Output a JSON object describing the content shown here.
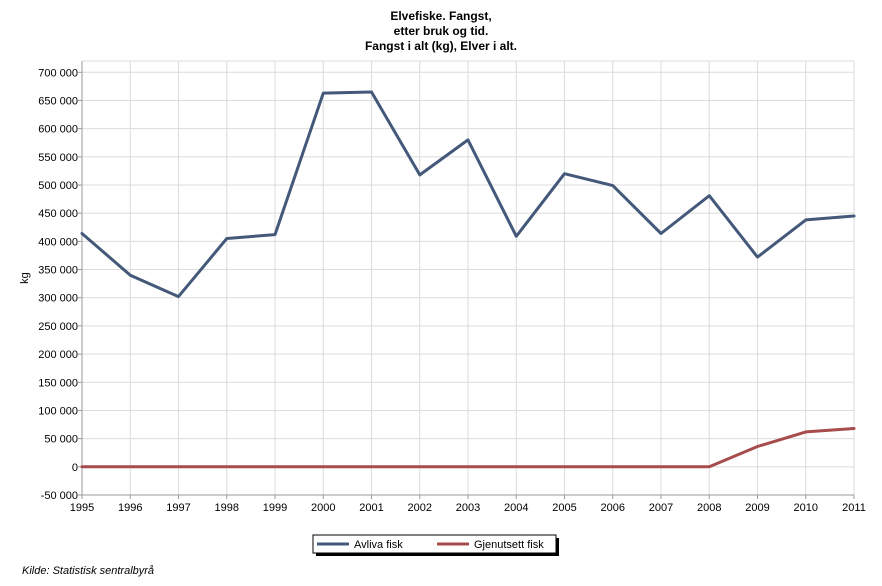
{
  "chart_data": {
    "type": "line",
    "title_lines": [
      "Elvefiske. Fangst,",
      "etter bruk og tid.",
      "Fangst i alt (kg), Elver i alt."
    ],
    "ylabel": "kg",
    "xlabel": "",
    "x": [
      "1995",
      "1996",
      "1997",
      "1998",
      "1999",
      "2000",
      "2001",
      "2002",
      "2003",
      "2004",
      "2005",
      "2006",
      "2007",
      "2008",
      "2009",
      "2010",
      "2011"
    ],
    "y_ticks": [
      -50000,
      0,
      50000,
      100000,
      150000,
      200000,
      250000,
      300000,
      350000,
      400000,
      450000,
      500000,
      550000,
      600000,
      650000,
      700000
    ],
    "y_tick_labels": [
      "-50 000",
      "0",
      "50 000",
      "100 000",
      "150 000",
      "200 000",
      "250 000",
      "300 000",
      "350 000",
      "400 000",
      "450 000",
      "500 000",
      "550 000",
      "600 000",
      "650 000",
      "700 000"
    ],
    "ylim": [
      -50000,
      720000
    ],
    "grid": true,
    "legend_position": "bottom-center",
    "series": [
      {
        "name": "Avliva fisk",
        "color": "#44597a",
        "values": [
          414000,
          340000,
          302000,
          405000,
          412000,
          663000,
          665000,
          518000,
          580000,
          409000,
          520000,
          499000,
          414000,
          481000,
          372000,
          438000,
          445000
        ]
      },
      {
        "name": "Gjenutsett fisk",
        "color": "#a64c4c",
        "values": [
          0,
          0,
          0,
          0,
          0,
          0,
          0,
          0,
          0,
          0,
          0,
          0,
          0,
          0,
          36000,
          62000,
          68000
        ]
      }
    ]
  },
  "source": "Kilde: Statistisk sentralbyrå"
}
